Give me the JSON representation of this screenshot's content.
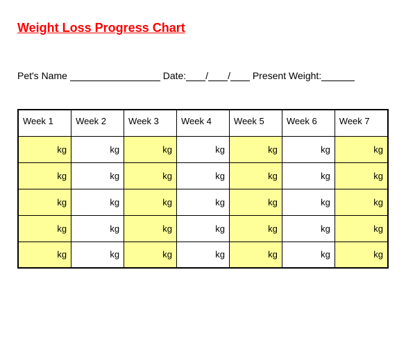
{
  "title": "Weight Loss Progress Chart",
  "form": {
    "name_label": "Pet's Name",
    "date_label": "Date:",
    "present_weight_label": "Present Weight:"
  },
  "table": {
    "type": "table",
    "columns": [
      {
        "label": "Week 1",
        "highlighted": true
      },
      {
        "label": "Week 2",
        "highlighted": false
      },
      {
        "label": "Week 3",
        "highlighted": true
      },
      {
        "label": "Week 4",
        "highlighted": false
      },
      {
        "label": "Week 5",
        "highlighted": true
      },
      {
        "label": "Week 6",
        "highlighted": false
      },
      {
        "label": "Week 7",
        "highlighted": true
      }
    ],
    "unit": "kg",
    "num_rows": 5,
    "colors": {
      "highlight_bg": "#ffff99",
      "normal_bg": "#ffffff",
      "border": "#000000",
      "title_color": "#ff0000"
    },
    "cell_fontsize": 13,
    "header_fontsize": 13
  }
}
